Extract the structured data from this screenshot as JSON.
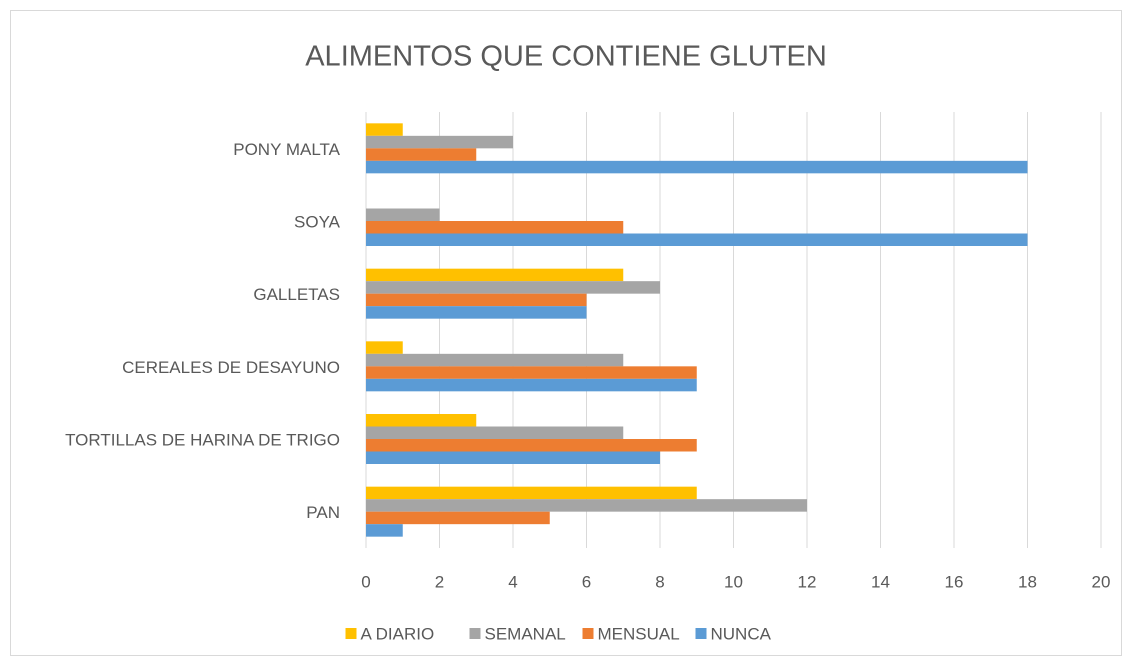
{
  "chart_data": {
    "type": "barh",
    "title": "ALIMENTOS QUE CONTIENE GLUTEN",
    "categories": [
      "PAN",
      "TORTILLAS DE HARINA DE TRIGO",
      "CEREALES DE DESAYUNO",
      "GALLETAS",
      "SOYA",
      "PONY MALTA"
    ],
    "series": [
      {
        "name": "A DIARIO",
        "color": "#ffc000",
        "values": [
          9,
          3,
          1,
          7,
          0,
          1
        ]
      },
      {
        "name": "SEMANAL",
        "color": "#a5a5a5",
        "values": [
          12,
          7,
          7,
          8,
          2,
          4
        ]
      },
      {
        "name": "MENSUAL",
        "color": "#ed7d31",
        "values": [
          5,
          9,
          9,
          6,
          7,
          3
        ]
      },
      {
        "name": "NUNCA",
        "color": "#5b9bd5",
        "values": [
          1,
          8,
          9,
          6,
          18,
          18
        ]
      }
    ],
    "xlim": [
      0,
      20
    ],
    "xticks": [
      0,
      2,
      4,
      6,
      8,
      10,
      12,
      14,
      16,
      18,
      20
    ],
    "grid": true,
    "legend": "bottom"
  }
}
